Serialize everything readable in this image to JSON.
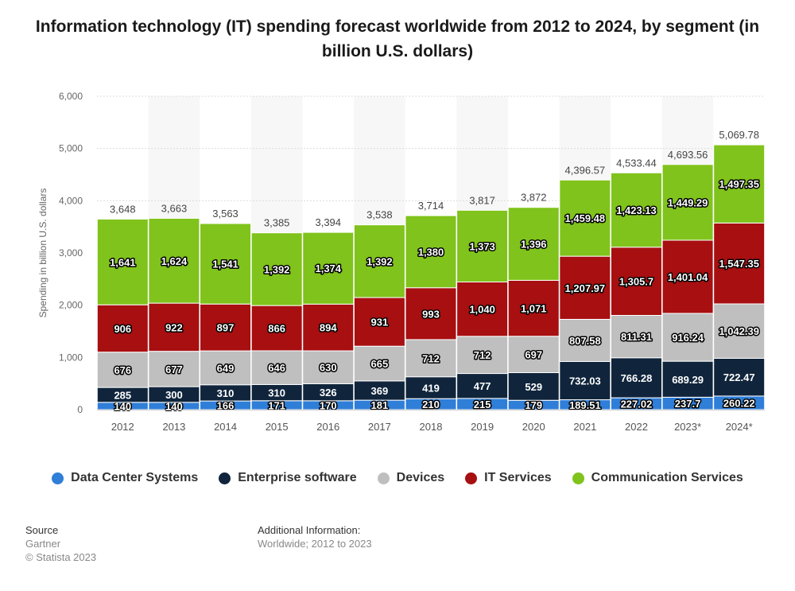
{
  "title": "Information technology (IT) spending forecast worldwide from 2012 to 2024, by segment (in billion U.S. dollars)",
  "chart_data": {
    "type": "bar",
    "stacked": true,
    "categories": [
      "2012",
      "2013",
      "2014",
      "2015",
      "2016",
      "2017",
      "2018",
      "2019",
      "2020",
      "2021",
      "2022",
      "2023*",
      "2024*"
    ],
    "series": [
      {
        "name": "Data Center Systems",
        "color": "#2f7ed8",
        "values": [
          140,
          140,
          166,
          171,
          170,
          181,
          210,
          215,
          179,
          189.51,
          227.02,
          237.7,
          260.22
        ],
        "labels": [
          "140",
          "140",
          "166",
          "171",
          "170",
          "181",
          "210",
          "215",
          "179",
          "189.51",
          "227.02",
          "237.7",
          "260.22"
        ]
      },
      {
        "name": "Enterprise software",
        "color": "#10253c",
        "values": [
          285,
          300,
          310,
          310,
          326,
          369,
          419,
          477,
          529,
          732.03,
          766.28,
          689.29,
          722.47
        ],
        "labels": [
          "285",
          "300",
          "310",
          "310",
          "326",
          "369",
          "419",
          "477",
          "529",
          "732.03",
          "766.28",
          "689.29",
          "722.47"
        ]
      },
      {
        "name": "Devices",
        "color": "#bfbfbf",
        "values": [
          676,
          677,
          649,
          646,
          630,
          665,
          712,
          712,
          697,
          807.58,
          811.31,
          916.24,
          1042.39
        ],
        "labels": [
          "676",
          "677",
          "649",
          "646",
          "630",
          "665",
          "712",
          "712",
          "697",
          "807.58",
          "811.31",
          "916.24",
          "1,042.39"
        ]
      },
      {
        "name": "IT Services",
        "color": "#a70f11",
        "values": [
          906,
          922,
          897,
          866,
          894,
          931,
          993,
          1040,
          1071,
          1207.97,
          1305.7,
          1401.04,
          1547.35
        ],
        "labels": [
          "906",
          "922",
          "897",
          "866",
          "894",
          "931",
          "993",
          "1,040",
          "1,071",
          "1,207.97",
          "1,305.7",
          "1,401.04",
          "1,547.35"
        ]
      },
      {
        "name": "Communication Services",
        "color": "#80c31c",
        "values": [
          1641,
          1624,
          1541,
          1392,
          1374,
          1392,
          1380,
          1373,
          1396,
          1459.48,
          1423.13,
          1449.29,
          1497.35
        ],
        "labels": [
          "1,641",
          "1,624",
          "1,541",
          "1,392",
          "1,374",
          "1,392",
          "1,380",
          "1,373",
          "1,396",
          "1,459.48",
          "1,423.13",
          "1,449.29",
          "1,497.35"
        ]
      }
    ],
    "totals": [
      "3,648",
      "3,663",
      "3,563",
      "3,385",
      "3,394",
      "3,538",
      "3,714",
      "3,817",
      "3,872",
      "4,396.57",
      "4,533.44",
      "4,693.56",
      "5,069.78"
    ],
    "ylabel": "Spending in billion U.S. dollars",
    "xlabel": "",
    "ylim": [
      0,
      6000
    ],
    "yticks": [
      0,
      1000,
      2000,
      3000,
      4000,
      5000,
      6000
    ],
    "ytick_labels": [
      "0",
      "1,000",
      "2,000",
      "3,000",
      "4,000",
      "5,000",
      "6,000"
    ],
    "grid": true,
    "legend_position": "bottom"
  },
  "footer": {
    "source_heading": "Source",
    "source_text": "Gartner",
    "copyright": "© Statista 2023",
    "additional_heading": "Additional Information:",
    "additional_text": "Worldwide; 2012 to 2023"
  }
}
